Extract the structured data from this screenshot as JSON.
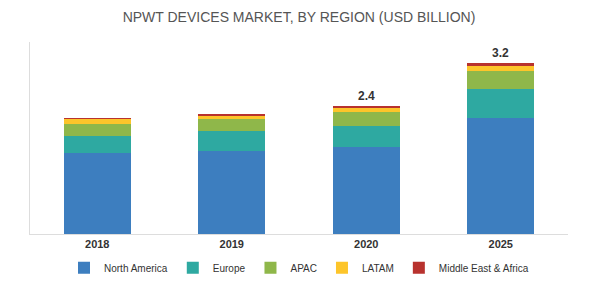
{
  "chart_data": {
    "type": "bar",
    "title": "NPWT DEVICES MARKET, BY REGION (USD BILLION)",
    "stacked": true,
    "categories": [
      "2018",
      "2019",
      "2020",
      "2025"
    ],
    "series": [
      {
        "name": "North America",
        "color": "#3d7ebf",
        "values": [
          1.51,
          1.56,
          1.63,
          2.17
        ]
      },
      {
        "name": "Europe",
        "color": "#2ea9a1",
        "values": [
          0.33,
          0.37,
          0.39,
          0.55
        ]
      },
      {
        "name": "APAC",
        "color": "#8fb74a",
        "values": [
          0.23,
          0.23,
          0.27,
          0.33
        ]
      },
      {
        "name": "LATAM",
        "color": "#fdc52a",
        "values": [
          0.08,
          0.06,
          0.07,
          0.1
        ]
      },
      {
        "name": "Middle East & Africa",
        "color": "#b8322e",
        "values": [
          0.03,
          0.03,
          0.04,
          0.05
        ]
      }
    ],
    "annotations": [
      {
        "category": "2020",
        "text": "2.4"
      },
      {
        "category": "2025",
        "text": "3.2"
      }
    ],
    "ylim": [
      0,
      3.6
    ],
    "tick_labels": "x",
    "grid": false,
    "legend": "bottom"
  }
}
